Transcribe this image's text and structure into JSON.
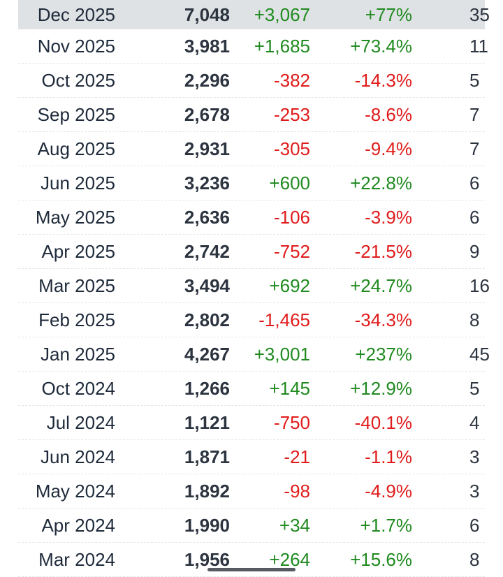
{
  "colors": {
    "positive": "#1f8a1f",
    "negative": "#e01b1b",
    "highlight_row_bg": "#dfe2e4"
  },
  "rows": [
    {
      "date": "Dec 2025",
      "value": "7,048",
      "change": "+3,067",
      "pct": "+77%",
      "extra": "35",
      "trend": "pos",
      "highlight": true
    },
    {
      "date": "Nov 2025",
      "value": "3,981",
      "change": "+1,685",
      "pct": "+73.4%",
      "extra": "11",
      "trend": "pos"
    },
    {
      "date": "Oct 2025",
      "value": "2,296",
      "change": "-382",
      "pct": "-14.3%",
      "extra": "5",
      "trend": "neg"
    },
    {
      "date": "Sep 2025",
      "value": "2,678",
      "change": "-253",
      "pct": "-8.6%",
      "extra": "7",
      "trend": "neg"
    },
    {
      "date": "Aug 2025",
      "value": "2,931",
      "change": "-305",
      "pct": "-9.4%",
      "extra": "7",
      "trend": "neg"
    },
    {
      "date": "Jun 2025",
      "value": "3,236",
      "change": "+600",
      "pct": "+22.8%",
      "extra": "6",
      "trend": "pos"
    },
    {
      "date": "May 2025",
      "value": "2,636",
      "change": "-106",
      "pct": "-3.9%",
      "extra": "6",
      "trend": "neg"
    },
    {
      "date": "Apr 2025",
      "value": "2,742",
      "change": "-752",
      "pct": "-21.5%",
      "extra": "9",
      "trend": "neg"
    },
    {
      "date": "Mar 2025",
      "value": "3,494",
      "change": "+692",
      "pct": "+24.7%",
      "extra": "16",
      "trend": "pos"
    },
    {
      "date": "Feb 2025",
      "value": "2,802",
      "change": "-1,465",
      "pct": "-34.3%",
      "extra": "8",
      "trend": "neg"
    },
    {
      "date": "Jan 2025",
      "value": "4,267",
      "change": "+3,001",
      "pct": "+237%",
      "extra": "45",
      "trend": "pos"
    },
    {
      "date": "Oct 2024",
      "value": "1,266",
      "change": "+145",
      "pct": "+12.9%",
      "extra": "5",
      "trend": "pos"
    },
    {
      "date": "Jul 2024",
      "value": "1,121",
      "change": "-750",
      "pct": "-40.1%",
      "extra": "4",
      "trend": "neg"
    },
    {
      "date": "Jun 2024",
      "value": "1,871",
      "change": "-21",
      "pct": "-1.1%",
      "extra": "3",
      "trend": "neg"
    },
    {
      "date": "May 2024",
      "value": "1,892",
      "change": "-98",
      "pct": "-4.9%",
      "extra": "3",
      "trend": "neg"
    },
    {
      "date": "Apr 2024",
      "value": "1,990",
      "change": "+34",
      "pct": "+1.7%",
      "extra": "6",
      "trend": "pos"
    },
    {
      "date": "Mar 2024",
      "value": "1,956",
      "change": "+264",
      "pct": "+15.6%",
      "extra": "8",
      "trend": "pos"
    }
  ]
}
